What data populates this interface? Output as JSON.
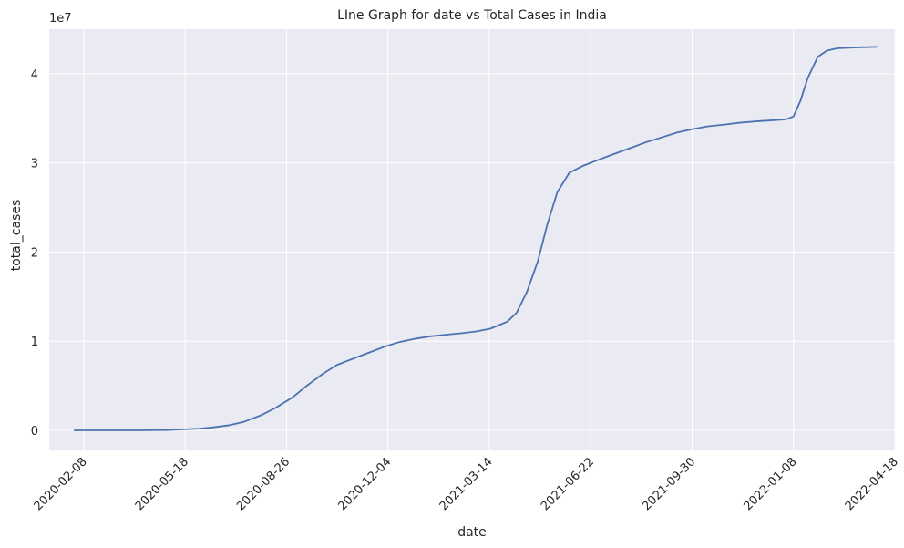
{
  "chart_data": {
    "type": "line",
    "title": "LIne Graph for date vs Total Cases in India",
    "xlabel": "date",
    "ylabel": "total_cases",
    "y_offset_label": "1e7",
    "y_unit_multiplier": 10000000,
    "x_axis_type": "date",
    "x_ticks": [
      "2020-02-08",
      "2020-05-18",
      "2020-08-26",
      "2020-12-04",
      "2021-03-14",
      "2021-06-22",
      "2021-09-30",
      "2022-01-08",
      "2022-04-18"
    ],
    "y_ticks": [
      0,
      1,
      2,
      3,
      4
    ],
    "ylim": [
      -0.215,
      4.5
    ],
    "xlim": [
      "2020-01-05",
      "2022-04-18"
    ],
    "grid": true,
    "line_color": "#4c72b0",
    "background_color": "#eaeaf2",
    "series": [
      {
        "x": [
          "2020-01-30",
          "2020-03-01",
          "2020-04-01",
          "2020-05-01",
          "2020-06-01",
          "2020-06-15",
          "2020-07-01",
          "2020-07-15",
          "2020-08-01",
          "2020-08-15",
          "2020-09-01",
          "2020-09-15",
          "2020-10-01",
          "2020-10-15",
          "2020-11-01",
          "2020-11-15",
          "2020-12-01",
          "2020-12-15",
          "2021-01-01",
          "2021-01-15",
          "2021-02-01",
          "2021-02-15",
          "2021-03-01",
          "2021-03-15",
          "2021-04-01",
          "2021-04-10",
          "2021-04-20",
          "2021-05-01",
          "2021-05-10",
          "2021-05-20",
          "2021-06-01",
          "2021-06-15",
          "2021-07-01",
          "2021-07-15",
          "2021-08-01",
          "2021-08-15",
          "2021-09-01",
          "2021-09-15",
          "2021-10-01",
          "2021-10-15",
          "2021-11-01",
          "2021-11-15",
          "2021-12-01",
          "2021-12-15",
          "2022-01-01",
          "2022-01-08",
          "2022-01-15",
          "2022-01-22",
          "2022-02-01",
          "2022-02-10",
          "2022-02-20",
          "2022-03-01",
          "2022-03-15",
          "2022-03-31"
        ],
        "y": [
          0.0,
          0.0,
          0.0,
          0.004,
          0.019,
          0.034,
          0.058,
          0.095,
          0.17,
          0.25,
          0.37,
          0.5,
          0.635,
          0.735,
          0.81,
          0.87,
          0.94,
          0.99,
          1.03,
          1.055,
          1.075,
          1.09,
          1.11,
          1.14,
          1.22,
          1.32,
          1.55,
          1.9,
          2.3,
          2.67,
          2.89,
          2.97,
          3.04,
          3.1,
          3.17,
          3.23,
          3.29,
          3.34,
          3.38,
          3.41,
          3.43,
          3.45,
          3.465,
          3.475,
          3.49,
          3.52,
          3.7,
          3.95,
          4.19,
          4.26,
          4.285,
          4.29,
          4.297,
          4.302
        ]
      }
    ]
  }
}
